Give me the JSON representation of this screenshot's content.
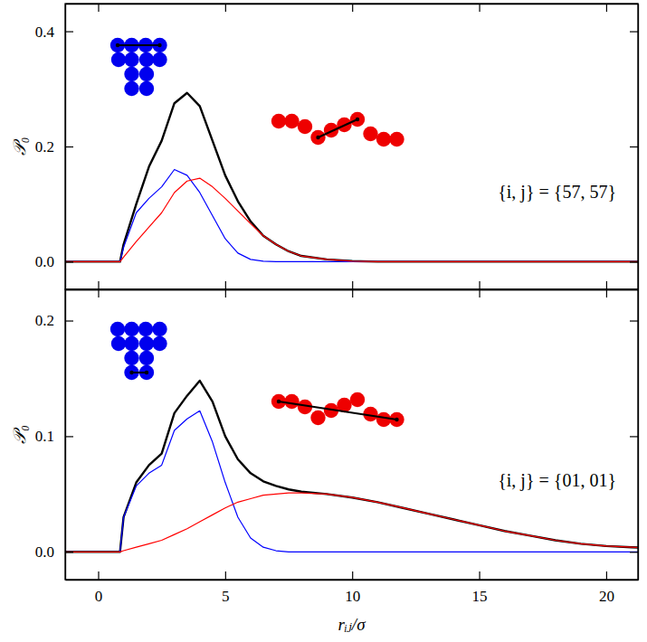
{
  "chart_data": [
    {
      "type": "line",
      "annotation": "{i, j} = {57, 57}",
      "ylabel": "𝒫₀",
      "xlim": [
        -1.3,
        21.25
      ],
      "ylim": [
        -0.048,
        0.448
      ],
      "xticks": [
        0,
        5,
        10,
        15,
        20
      ],
      "yticks": [
        {
          "value": 0,
          "label": "0.0"
        },
        {
          "value": 0.2,
          "label": "0.2"
        },
        {
          "value": 0.4,
          "label": "0.4"
        }
      ],
      "tick_labels": "y",
      "x": [
        -1.5,
        0,
        0.86,
        1,
        1.5,
        2,
        2.5,
        3,
        3.5,
        4,
        4.5,
        5,
        5.5,
        6,
        6.5,
        7,
        7.5,
        8,
        9,
        10,
        11,
        12,
        13,
        14,
        15,
        16,
        17,
        18,
        19,
        20,
        21,
        22
      ],
      "series": [
        {
          "color": "#000000",
          "values": [
            0,
            0,
            0,
            0.03,
            0.1,
            0.165,
            0.21,
            0.275,
            0.293,
            0.27,
            0.21,
            0.15,
            0.105,
            0.07,
            0.045,
            0.03,
            0.018,
            0.01,
            0.004,
            0.001,
            0,
            0,
            0,
            0,
            0,
            0,
            0,
            0,
            0,
            0,
            0,
            0
          ]
        },
        {
          "color": "#0000ff",
          "values": [
            0,
            0,
            0,
            0.025,
            0.085,
            0.11,
            0.13,
            0.16,
            0.15,
            0.12,
            0.08,
            0.04,
            0.015,
            0.004,
            0.001,
            0,
            0,
            0,
            0,
            0,
            0,
            0,
            0,
            0,
            0,
            0,
            0,
            0,
            0,
            0,
            0,
            0
          ]
        },
        {
          "color": "#ff0000",
          "values": [
            0,
            0,
            0,
            0.008,
            0.035,
            0.06,
            0.085,
            0.12,
            0.14,
            0.145,
            0.13,
            0.11,
            0.088,
            0.066,
            0.045,
            0.03,
            0.018,
            0.01,
            0.004,
            0.001,
            0,
            0,
            0,
            0,
            0,
            0,
            0,
            0,
            0,
            0,
            0,
            0
          ]
        }
      ]
    },
    {
      "type": "line",
      "annotation": "{i, j} = {01, 01}",
      "xlabel": "rᵢⱼ/σ",
      "ylabel": "𝒫₀",
      "xlim": [
        -1.3,
        21.25
      ],
      "ylim": [
        -0.024,
        0.227
      ],
      "xticks": [
        0,
        5,
        10,
        15,
        20
      ],
      "yticks": [
        {
          "value": 0,
          "label": "0.0"
        },
        {
          "value": 0.1,
          "label": "0.1"
        },
        {
          "value": 0.2,
          "label": "0.2"
        }
      ],
      "x": [
        -1.5,
        0,
        0.86,
        1,
        1.5,
        2,
        2.5,
        3,
        3.5,
        4,
        4.5,
        5,
        5.5,
        6,
        6.5,
        7,
        7.5,
        8,
        9,
        10,
        11,
        12,
        13,
        14,
        15,
        16,
        17,
        18,
        19,
        20,
        21,
        22
      ],
      "series": [
        {
          "color": "#000000",
          "values": [
            0,
            0,
            0,
            0.03,
            0.06,
            0.075,
            0.085,
            0.12,
            0.135,
            0.148,
            0.13,
            0.1,
            0.08,
            0.068,
            0.061,
            0.057,
            0.054,
            0.052,
            0.05,
            0.047,
            0.043,
            0.038,
            0.033,
            0.028,
            0.023,
            0.018,
            0.014,
            0.01,
            0.007,
            0.005,
            0.004,
            0.003
          ]
        },
        {
          "color": "#0000ff",
          "values": [
            0,
            0,
            0,
            0.03,
            0.057,
            0.068,
            0.075,
            0.105,
            0.115,
            0.122,
            0.095,
            0.06,
            0.03,
            0.012,
            0.004,
            0.001,
            0,
            0,
            0,
            0,
            0,
            0,
            0,
            0,
            0,
            0,
            0,
            0,
            0,
            0,
            0,
            0
          ]
        },
        {
          "color": "#ff0000",
          "values": [
            0,
            0,
            0,
            0.001,
            0.004,
            0.007,
            0.01,
            0.015,
            0.02,
            0.026,
            0.032,
            0.038,
            0.043,
            0.046,
            0.049,
            0.05,
            0.051,
            0.051,
            0.05,
            0.047,
            0.043,
            0.038,
            0.033,
            0.028,
            0.023,
            0.018,
            0.014,
            0.01,
            0.007,
            0.005,
            0.004,
            0.003
          ]
        }
      ]
    }
  ]
}
